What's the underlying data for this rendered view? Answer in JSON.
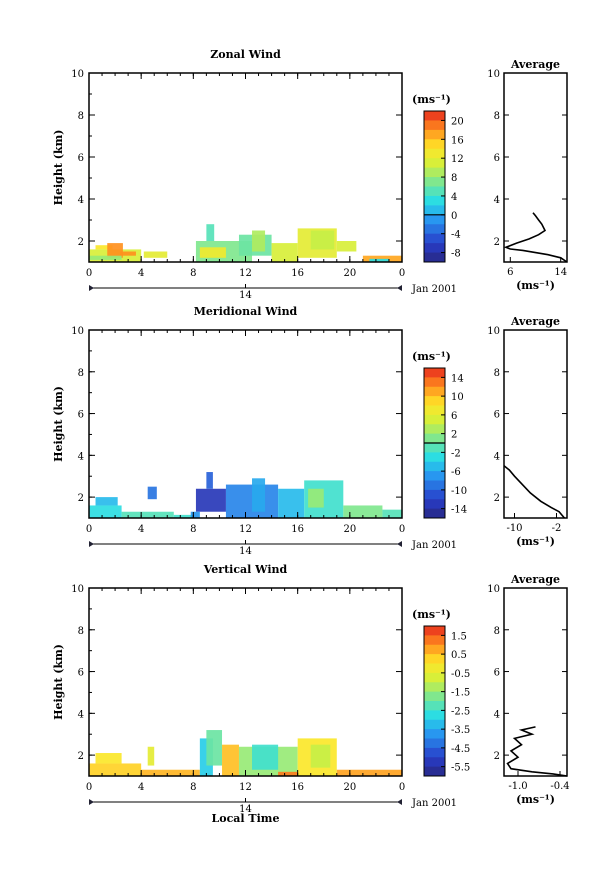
{
  "chart_data": [
    {
      "type": "heatmap",
      "title": "Zonal Wind",
      "ylabel": "Height (km)",
      "xticks": [
        "0",
        "4",
        "8",
        "12",
        "16",
        "20",
        "0"
      ],
      "date_tick": "14",
      "date_note": "Jan 2001",
      "ylim": [
        1,
        10
      ],
      "yticks": [
        "2",
        "4",
        "6",
        "8",
        "10"
      ],
      "colorbar": {
        "unit": "(ms⁻¹)",
        "ticks": [
          "20",
          "16",
          "12",
          "8",
          "4",
          "0",
          "-4",
          "-8"
        ],
        "range": [
          -10,
          22
        ],
        "zero_line": 0
      },
      "average": {
        "title": "Average",
        "xticks": [
          "6",
          "14"
        ],
        "xlabel": "(ms⁻¹)",
        "xlim": [
          5,
          15
        ],
        "profile": [
          [
            15,
            1.0
          ],
          [
            14,
            1.2
          ],
          [
            12,
            1.35
          ],
          [
            10,
            1.45
          ],
          [
            8,
            1.55
          ],
          [
            6,
            1.62
          ],
          [
            5.3,
            1.7
          ],
          [
            7,
            1.9
          ],
          [
            9,
            2.1
          ],
          [
            10.5,
            2.3
          ],
          [
            11.5,
            2.5
          ],
          [
            11,
            2.8
          ],
          [
            10.5,
            3.0
          ],
          [
            10,
            3.2
          ],
          [
            9.6,
            3.35
          ]
        ]
      },
      "patches": [
        [
          0,
          1.0,
          4.0,
          1.6,
          11
        ],
        [
          0.5,
          1.6,
          1.8,
          1.8,
          14
        ],
        [
          1.4,
          1.2,
          2.6,
          1.9,
          18
        ],
        [
          2.4,
          1.3,
          3.6,
          1.5,
          18
        ],
        [
          4.2,
          1.2,
          6.0,
          1.5,
          12
        ],
        [
          0,
          1.1,
          2.5,
          1.3,
          8
        ],
        [
          8.2,
          1.0,
          12.5,
          2.0,
          7
        ],
        [
          8.5,
          1.2,
          10.5,
          1.7,
          13
        ],
        [
          9.0,
          2.0,
          9.6,
          2.8,
          5
        ],
        [
          11.5,
          1.3,
          14.0,
          2.3,
          6
        ],
        [
          12.5,
          1.5,
          13.5,
          2.5,
          9
        ],
        [
          14.0,
          1.0,
          16.0,
          1.9,
          11
        ],
        [
          16.0,
          1.2,
          19.0,
          2.6,
          12
        ],
        [
          17.0,
          1.6,
          18.8,
          2.5,
          10
        ],
        [
          19.0,
          1.5,
          20.5,
          2.0,
          11
        ],
        [
          21.0,
          1.0,
          24.0,
          1.3,
          17
        ],
        [
          21.5,
          1.0,
          23.0,
          1.15,
          3
        ]
      ]
    },
    {
      "type": "heatmap",
      "title": "Meridional Wind",
      "ylabel": "Height (km)",
      "xticks": [
        "0",
        "4",
        "8",
        "12",
        "16",
        "20",
        "0"
      ],
      "date_tick": "14",
      "date_note": "Jan 2001",
      "ylim": [
        1,
        10
      ],
      "yticks": [
        "2",
        "4",
        "6",
        "8",
        "10"
      ],
      "colorbar": {
        "unit": "(ms⁻¹)",
        "ticks": [
          "14",
          "10",
          "6",
          "2",
          "-2",
          "-6",
          "-10",
          "-14"
        ],
        "range": [
          -16,
          16
        ],
        "zero_line": 0
      },
      "average": {
        "title": "Average",
        "xticks": [
          "-10",
          "-2"
        ],
        "xlabel": "(ms⁻¹)",
        "xlim": [
          -12,
          0
        ],
        "profile": [
          [
            -12,
            3.5
          ],
          [
            -11,
            3.3
          ],
          [
            -10,
            3.0
          ],
          [
            -8.5,
            2.6
          ],
          [
            -7,
            2.2
          ],
          [
            -5,
            1.8
          ],
          [
            -3,
            1.5
          ],
          [
            -1.5,
            1.3
          ],
          [
            -0.5,
            1.0
          ]
        ]
      },
      "patches": [
        [
          0,
          1.0,
          2.5,
          1.6,
          -3
        ],
        [
          0.5,
          1.6,
          2.2,
          2.0,
          -5
        ],
        [
          2.5,
          1.0,
          6.5,
          1.3,
          -1
        ],
        [
          6.5,
          1.0,
          8.0,
          1.15,
          -2
        ],
        [
          4.5,
          1.9,
          5.2,
          2.5,
          -9
        ],
        [
          8.2,
          1.3,
          10.5,
          2.4,
          -13
        ],
        [
          9.0,
          2.4,
          9.5,
          3.2,
          -10
        ],
        [
          10.5,
          1.0,
          14.5,
          2.6,
          -8
        ],
        [
          12.5,
          1.3,
          13.5,
          2.9,
          -6
        ],
        [
          14.5,
          1.0,
          16.5,
          2.4,
          -5
        ],
        [
          16.5,
          1.0,
          19.5,
          2.8,
          -2
        ],
        [
          16.8,
          1.5,
          18.0,
          2.4,
          2
        ],
        [
          19.5,
          1.0,
          22.5,
          1.6,
          1
        ],
        [
          22.5,
          1.0,
          24.0,
          1.4,
          -1
        ],
        [
          7.8,
          1.0,
          8.5,
          1.3,
          -7
        ]
      ]
    },
    {
      "type": "heatmap",
      "title": "Vertical Wind",
      "ylabel": "Height (km)",
      "xlabel": "Local Time",
      "xticks": [
        "0",
        "4",
        "8",
        "12",
        "16",
        "20",
        "0"
      ],
      "date_tick": "14",
      "date_note": "Jan 2001",
      "ylim": [
        1,
        10
      ],
      "yticks": [
        "2",
        "4",
        "6",
        "8",
        "10"
      ],
      "colorbar": {
        "unit": "(ms⁻¹)",
        "ticks": [
          "1.5",
          "0.5",
          "-0.5",
          "-1.5",
          "-2.5",
          "-3.5",
          "-4.5",
          "-5.5"
        ],
        "range": [
          -6.0,
          2.0
        ]
      },
      "average": {
        "title": "Average",
        "xticks": [
          "-1.0",
          "-0.4"
        ],
        "xlabel": "(ms⁻¹)",
        "xlim": [
          -1.2,
          -0.3
        ],
        "profile": [
          [
            -0.3,
            1.0
          ],
          [
            -0.5,
            1.1
          ],
          [
            -0.8,
            1.2
          ],
          [
            -1.1,
            1.35
          ],
          [
            -1.15,
            1.6
          ],
          [
            -1.0,
            1.9
          ],
          [
            -1.1,
            2.2
          ],
          [
            -0.95,
            2.5
          ],
          [
            -1.05,
            2.8
          ],
          [
            -0.8,
            3.0
          ],
          [
            -0.95,
            3.2
          ],
          [
            -0.75,
            3.35
          ]
        ]
      },
      "patches": [
        [
          0,
          1.0,
          4.0,
          1.6,
          0.3
        ],
        [
          0.5,
          1.6,
          2.5,
          2.1,
          0.0
        ],
        [
          4.0,
          1.0,
          8.5,
          1.3,
          0.6
        ],
        [
          4.5,
          1.5,
          5.0,
          2.4,
          -0.5
        ],
        [
          8.5,
          1.0,
          9.5,
          2.8,
          -3.0
        ],
        [
          9.0,
          1.5,
          10.2,
          3.2,
          -2.0
        ],
        [
          10.2,
          1.0,
          11.5,
          2.5,
          0.5
        ],
        [
          11.5,
          1.0,
          16.0,
          2.4,
          -1.5
        ],
        [
          12.5,
          1.3,
          14.5,
          2.5,
          -2.5
        ],
        [
          16.0,
          1.0,
          19.0,
          2.8,
          0.0
        ],
        [
          17.0,
          1.4,
          18.5,
          2.5,
          -1.0
        ],
        [
          19.0,
          1.0,
          24.0,
          1.3,
          0.8
        ],
        [
          14.5,
          1.0,
          16.0,
          1.2,
          1.2
        ]
      ]
    }
  ]
}
